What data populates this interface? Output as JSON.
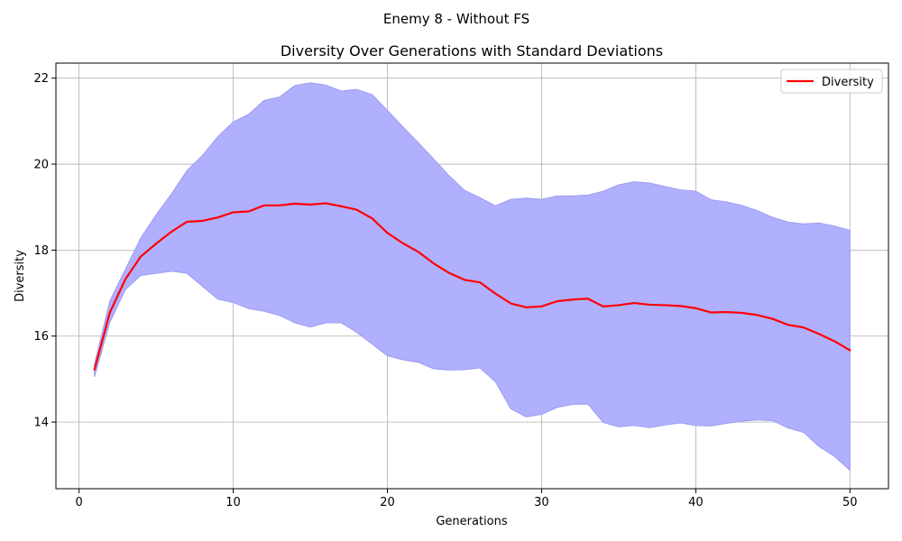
{
  "figure": {
    "suptitle": "Enemy 8 - Without FS"
  },
  "chart_data": {
    "type": "line",
    "title": "Diversity Over Generations with Standard Deviations",
    "xlabel": "Generations",
    "ylabel": "Diversity",
    "xlim": [
      -1.5,
      52.5
    ],
    "ylim": [
      12.45,
      22.35
    ],
    "x_ticks": [
      0,
      10,
      20,
      30,
      40,
      50
    ],
    "y_ticks": [
      14,
      16,
      18,
      20,
      22
    ],
    "grid": true,
    "legend": {
      "position": "top-right",
      "entries": [
        "Diversity"
      ]
    },
    "x": [
      1,
      2,
      3,
      4,
      5,
      6,
      7,
      8,
      9,
      10,
      11,
      12,
      13,
      14,
      15,
      16,
      17,
      18,
      19,
      20,
      21,
      22,
      23,
      24,
      25,
      26,
      27,
      28,
      29,
      30,
      31,
      32,
      33,
      34,
      35,
      36,
      37,
      38,
      39,
      40,
      41,
      42,
      43,
      44,
      45,
      46,
      47,
      48,
      49,
      50
    ],
    "series": [
      {
        "name": "Diversity",
        "color": "#ff0000",
        "values": [
          15.22,
          16.55,
          17.32,
          17.85,
          18.15,
          18.43,
          18.66,
          18.68,
          18.76,
          18.88,
          18.9,
          19.04,
          19.04,
          19.08,
          19.06,
          19.09,
          19.02,
          18.94,
          18.74,
          18.4,
          18.16,
          17.96,
          17.69,
          17.47,
          17.31,
          17.25,
          16.99,
          16.76,
          16.67,
          16.69,
          16.81,
          16.85,
          16.87,
          16.69,
          16.72,
          16.77,
          16.73,
          16.72,
          16.7,
          16.65,
          16.55,
          16.56,
          16.54,
          16.49,
          16.4,
          16.26,
          16.2,
          16.05,
          15.88,
          15.67
        ]
      }
    ],
    "band": {
      "color": "#b0b0ff",
      "edge_color": "#9c9cf0",
      "upper": [
        15.35,
        16.82,
        17.55,
        18.28,
        18.82,
        19.31,
        19.85,
        20.2,
        20.64,
        20.98,
        21.16,
        21.48,
        21.56,
        21.83,
        21.89,
        21.84,
        21.7,
        21.74,
        21.62,
        21.25,
        20.87,
        20.5,
        20.12,
        19.73,
        19.39,
        19.22,
        19.03,
        19.18,
        19.21,
        19.18,
        19.26,
        19.26,
        19.28,
        19.37,
        19.52,
        19.59,
        19.56,
        19.48,
        19.4,
        19.37,
        19.17,
        19.12,
        19.04,
        18.92,
        18.76,
        18.65,
        18.61,
        18.63,
        18.56,
        18.46
      ],
      "lower": [
        15.05,
        16.32,
        17.08,
        17.41,
        17.46,
        17.51,
        17.46,
        17.16,
        16.86,
        16.78,
        16.64,
        16.58,
        16.48,
        16.31,
        16.21,
        16.31,
        16.31,
        16.09,
        15.82,
        15.54,
        15.45,
        15.39,
        15.24,
        15.21,
        15.22,
        15.26,
        14.94,
        14.31,
        14.12,
        14.18,
        14.34,
        14.41,
        14.42,
        13.99,
        13.89,
        13.92,
        13.87,
        13.93,
        13.98,
        13.92,
        13.91,
        13.97,
        14.02,
        14.05,
        14.03,
        13.86,
        13.76,
        13.43,
        13.2,
        12.88
      ]
    }
  }
}
